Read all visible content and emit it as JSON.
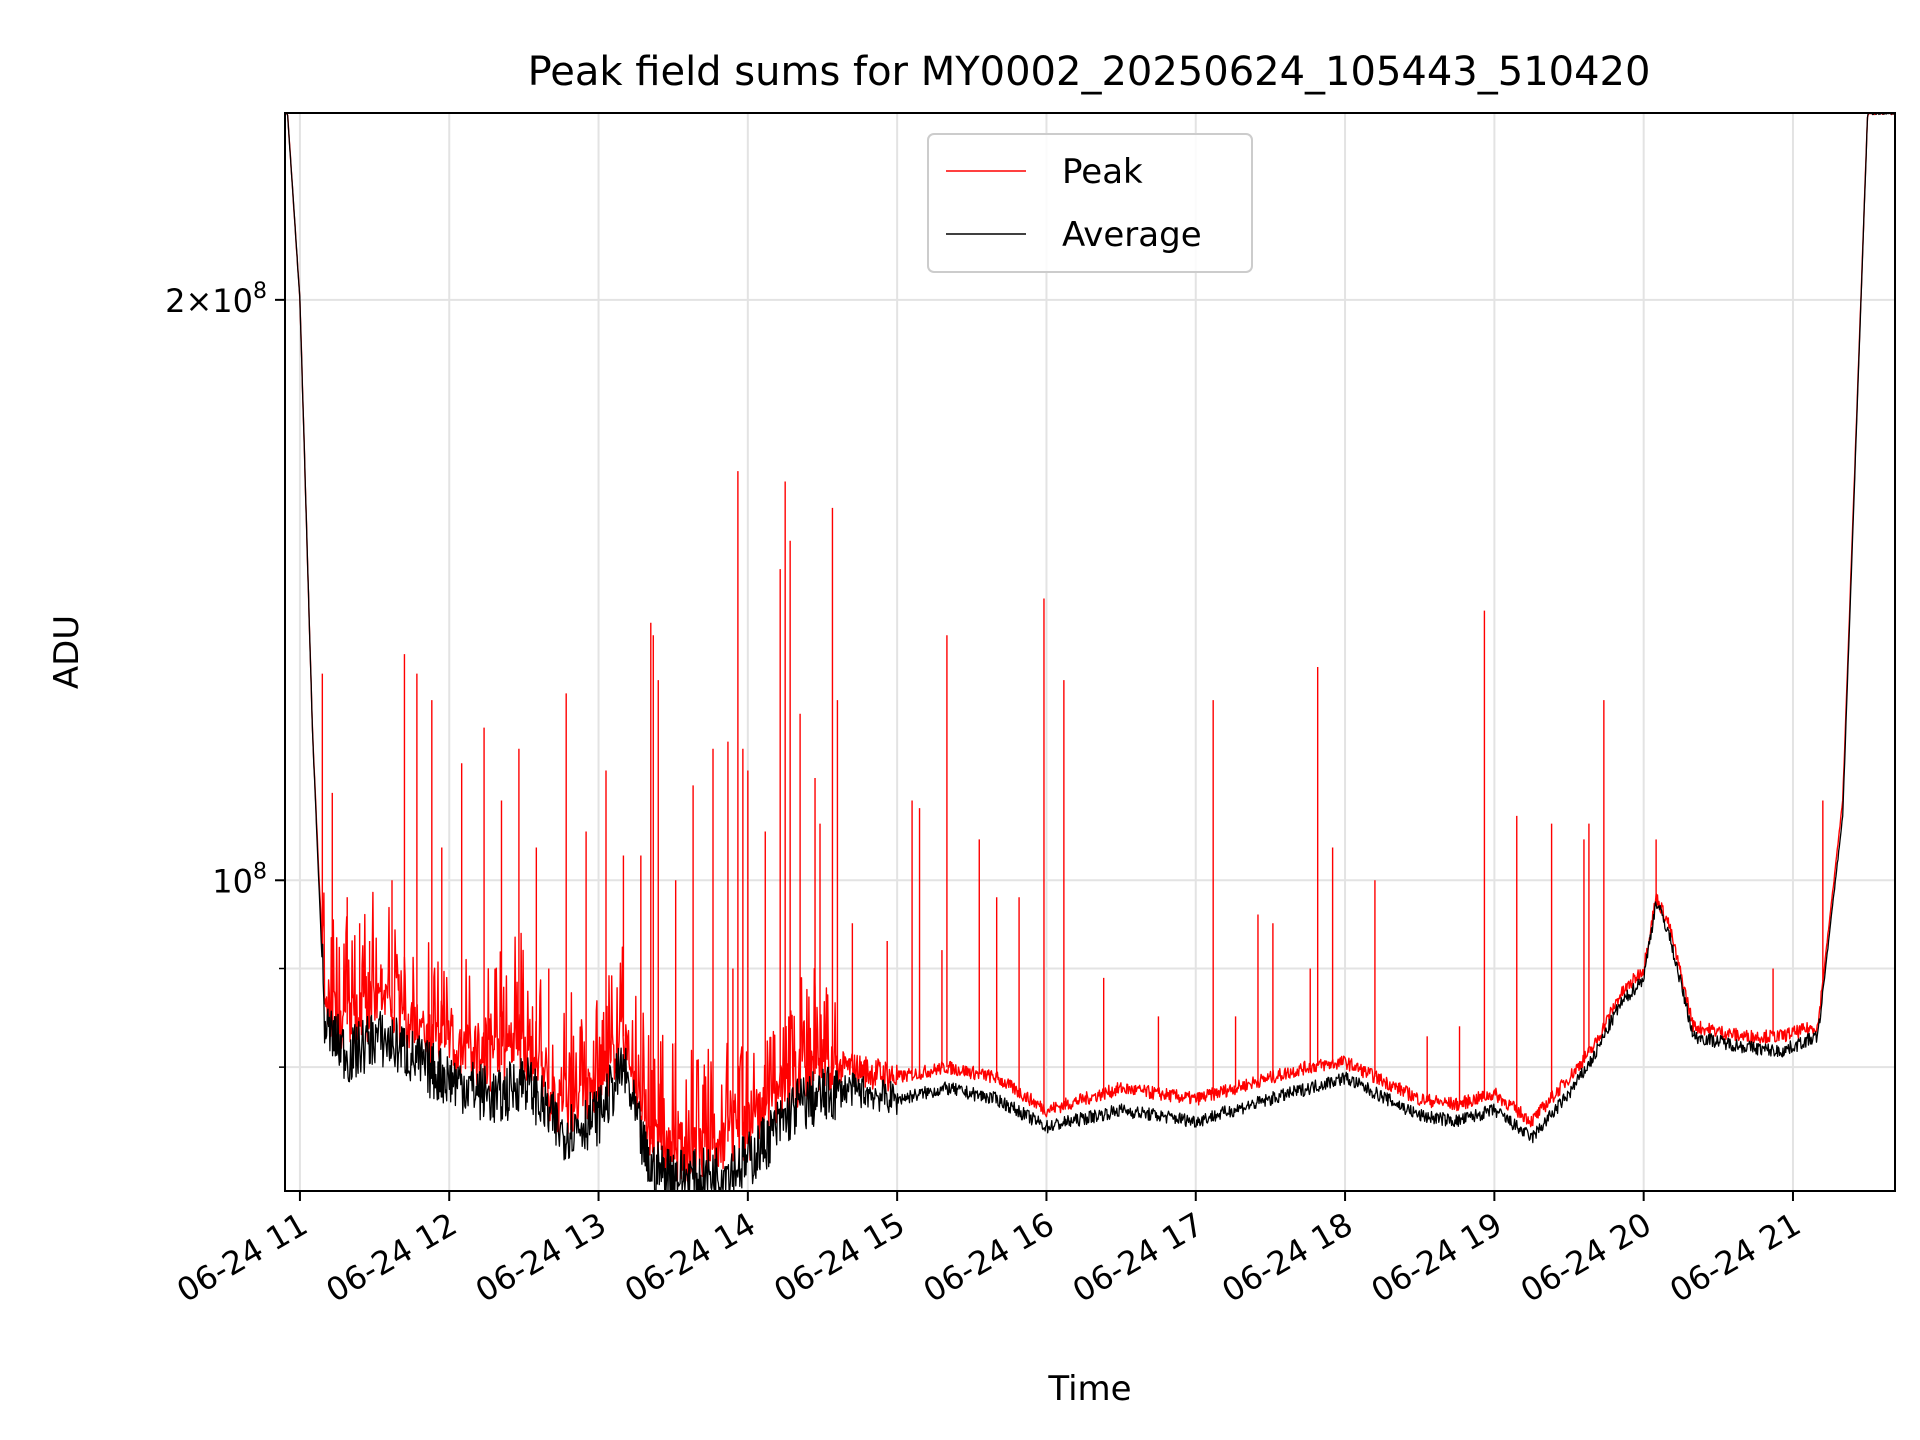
{
  "chart_data": {
    "type": "line",
    "title": "Peak field sums for MY0002_20250624_105443_510420",
    "xlabel": "Time",
    "ylabel": "ADU",
    "x_range_hours": [
      "2025-06-24 10:54",
      "2025-06-24 21:41"
    ],
    "x_ticks": [
      "06-24 11",
      "06-24 12",
      "06-24 13",
      "06-24 14",
      "06-24 15",
      "06-24 16",
      "06-24 17",
      "06-24 18",
      "06-24 19",
      "06-24 20",
      "06-24 21"
    ],
    "y_scale": "log",
    "ylim": [
      69000000,
      250000000
    ],
    "y_major_ticks": [
      {
        "value": 100000000,
        "label": "10^8"
      },
      {
        "value": 200000000,
        "label": "2×10^8"
      }
    ],
    "y_minor_ticks": [
      80000000,
      90000000
    ],
    "grid": true,
    "legend": "upper center",
    "series": [
      {
        "name": "Peak",
        "color": "#ff0000",
        "baseline": [
          [
            "10:55",
            250000000
          ],
          [
            "11:00",
            200000000
          ],
          [
            "11:05",
            120000000
          ],
          [
            "11:10",
            86000000
          ],
          [
            "11:20",
            84000000
          ],
          [
            "11:30",
            86000000
          ],
          [
            "11:40",
            85000000
          ],
          [
            "11:50",
            83000000
          ],
          [
            "12:00",
            82000000
          ],
          [
            "12:20",
            80000000
          ],
          [
            "12:30",
            82000000
          ],
          [
            "12:45",
            76000000
          ],
          [
            "13:00",
            78000000
          ],
          [
            "13:10",
            83000000
          ],
          [
            "13:20",
            73000000
          ],
          [
            "13:40",
            72000000
          ],
          [
            "14:00",
            74000000
          ],
          [
            "14:20",
            79000000
          ],
          [
            "14:40",
            80000000
          ],
          [
            "15:00",
            79000000
          ],
          [
            "15:20",
            80000000
          ],
          [
            "15:40",
            79000000
          ],
          [
            "16:00",
            76000000
          ],
          [
            "16:30",
            78000000
          ],
          [
            "17:00",
            77000000
          ],
          [
            "17:30",
            79000000
          ],
          [
            "17:45",
            80000000
          ],
          [
            "18:00",
            80500000
          ],
          [
            "18:30",
            77000000
          ],
          [
            "18:45",
            76500000
          ],
          [
            "19:00",
            77500000
          ],
          [
            "19:15",
            75000000
          ],
          [
            "19:30",
            79000000
          ],
          [
            "19:40",
            82000000
          ],
          [
            "19:50",
            87000000
          ],
          [
            "20:00",
            90000000
          ],
          [
            "20:05",
            98000000
          ],
          [
            "20:10",
            95000000
          ],
          [
            "20:20",
            84000000
          ],
          [
            "20:40",
            83000000
          ],
          [
            "20:55",
            83000000
          ],
          [
            "21:10",
            84000000
          ],
          [
            "21:20",
            110000000
          ],
          [
            "21:30",
            250000000
          ],
          [
            "21:41",
            250000000
          ]
        ],
        "spikes": [
          [
            "11:09",
            128000000
          ],
          [
            "11:13",
            111000000
          ],
          [
            "11:19",
            98000000
          ],
          [
            "11:24",
            95000000
          ],
          [
            "11:28",
            93000000
          ],
          [
            "11:33",
            90000000
          ],
          [
            "11:37",
            100000000
          ],
          [
            "11:42",
            131000000
          ],
          [
            "11:47",
            128000000
          ],
          [
            "11:53",
            124000000
          ],
          [
            "11:57",
            104000000
          ],
          [
            "12:05",
            115000000
          ],
          [
            "12:14",
            120000000
          ],
          [
            "12:21",
            110000000
          ],
          [
            "12:28",
            117000000
          ],
          [
            "12:35",
            104000000
          ],
          [
            "12:40",
            90000000
          ],
          [
            "12:47",
            125000000
          ],
          [
            "12:55",
            106000000
          ],
          [
            "13:03",
            114000000
          ],
          [
            "13:10",
            103000000
          ],
          [
            "13:17",
            103000000
          ],
          [
            "13:21",
            136000000
          ],
          [
            "13:22",
            134000000
          ],
          [
            "13:24",
            127000000
          ],
          [
            "13:31",
            100000000
          ],
          [
            "13:38",
            112000000
          ],
          [
            "13:46",
            117000000
          ],
          [
            "13:52",
            118000000
          ],
          [
            "13:54",
            90000000
          ],
          [
            "13:56",
            163000000
          ],
          [
            "13:58",
            117000000
          ],
          [
            "14:00",
            114000000
          ],
          [
            "14:07",
            106000000
          ],
          [
            "14:13",
            145000000
          ],
          [
            "14:15",
            161000000
          ],
          [
            "14:17",
            150000000
          ],
          [
            "14:21",
            122000000
          ],
          [
            "14:27",
            113000000
          ],
          [
            "14:29",
            107000000
          ],
          [
            "14:34",
            156000000
          ],
          [
            "14:36",
            124000000
          ],
          [
            "14:42",
            95000000
          ],
          [
            "14:56",
            93000000
          ],
          [
            "15:06",
            110000000
          ],
          [
            "15:09",
            109000000
          ],
          [
            "15:18",
            92000000
          ],
          [
            "15:20",
            134000000
          ],
          [
            "15:33",
            105000000
          ],
          [
            "15:40",
            98000000
          ],
          [
            "15:49",
            98000000
          ],
          [
            "15:59",
            140000000
          ],
          [
            "16:07",
            127000000
          ],
          [
            "16:23",
            89000000
          ],
          [
            "16:45",
            85000000
          ],
          [
            "17:07",
            124000000
          ],
          [
            "17:16",
            85000000
          ],
          [
            "17:25",
            96000000
          ],
          [
            "17:31",
            95000000
          ],
          [
            "17:46",
            90000000
          ],
          [
            "17:49",
            129000000
          ],
          [
            "17:55",
            104000000
          ],
          [
            "18:12",
            100000000
          ],
          [
            "18:33",
            83000000
          ],
          [
            "18:46",
            84000000
          ],
          [
            "18:56",
            138000000
          ],
          [
            "19:09",
            108000000
          ],
          [
            "19:23",
            107000000
          ],
          [
            "19:36",
            105000000
          ],
          [
            "19:38",
            107000000
          ],
          [
            "19:44",
            124000000
          ],
          [
            "20:05",
            105000000
          ],
          [
            "20:52",
            90000000
          ],
          [
            "21:12",
            110000000
          ]
        ]
      },
      {
        "name": "Average",
        "color": "#000000",
        "baseline": [
          [
            "10:55",
            250000000
          ],
          [
            "11:00",
            200000000
          ],
          [
            "11:05",
            120000000
          ],
          [
            "11:10",
            84000000
          ],
          [
            "11:20",
            81000000
          ],
          [
            "11:30",
            83000000
          ],
          [
            "11:40",
            82000000
          ],
          [
            "11:50",
            80000000
          ],
          [
            "12:00",
            79000000
          ],
          [
            "12:20",
            77000000
          ],
          [
            "12:30",
            79000000
          ],
          [
            "12:45",
            74000000
          ],
          [
            "13:00",
            75500000
          ],
          [
            "13:10",
            80000000
          ],
          [
            "13:20",
            71000000
          ],
          [
            "13:40",
            70000000
          ],
          [
            "14:00",
            71500000
          ],
          [
            "14:20",
            76500000
          ],
          [
            "14:40",
            78000000
          ],
          [
            "15:00",
            77000000
          ],
          [
            "15:20",
            78000000
          ],
          [
            "15:40",
            77000000
          ],
          [
            "16:00",
            74500000
          ],
          [
            "16:30",
            76000000
          ],
          [
            "17:00",
            75000000
          ],
          [
            "17:30",
            77000000
          ],
          [
            "17:45",
            78000000
          ],
          [
            "18:00",
            79000000
          ],
          [
            "18:30",
            75500000
          ],
          [
            "18:45",
            75000000
          ],
          [
            "19:00",
            76000000
          ],
          [
            "19:15",
            73500000
          ],
          [
            "19:30",
            77500000
          ],
          [
            "19:40",
            81000000
          ],
          [
            "19:50",
            86000000
          ],
          [
            "20:00",
            89000000
          ],
          [
            "20:05",
            97500000
          ],
          [
            "20:10",
            94000000
          ],
          [
            "20:20",
            83000000
          ],
          [
            "20:40",
            82000000
          ],
          [
            "20:55",
            81500000
          ],
          [
            "21:10",
            83000000
          ],
          [
            "21:20",
            108000000
          ],
          [
            "21:30",
            250000000
          ],
          [
            "21:41",
            250000000
          ]
        ]
      }
    ]
  }
}
